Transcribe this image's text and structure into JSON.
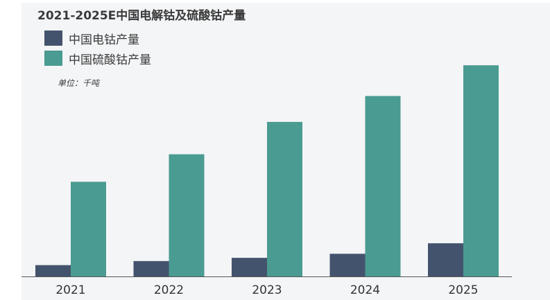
{
  "chart_data": {
    "type": "bar",
    "title": "2021-2025E中国电解钴及硫酸钴产量",
    "unit_label": "单位：千吨",
    "categories": [
      "2021",
      "2022",
      "2023",
      "2024",
      "2025"
    ],
    "series": [
      {
        "name": "中国电钴产量",
        "color": "#44536d",
        "values": [
          7,
          9.5,
          11.5,
          14,
          20.5
        ]
      },
      {
        "name": "中国硫酸钴产量",
        "color": "#4a9b91",
        "values": [
          58.5,
          75.5,
          95.5,
          111.5,
          130.5
        ]
      }
    ],
    "ylim": [
      0,
      140
    ],
    "grid": false,
    "legend_position": "top-left"
  }
}
